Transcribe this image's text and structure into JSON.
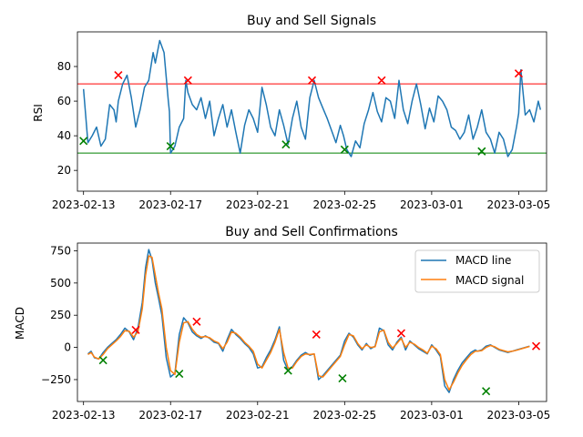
{
  "colors": {
    "rsi": "#1f77b4",
    "macd_line": "#1f77b4",
    "macd_signal": "#ff7f0e",
    "overbought": "#ff0000",
    "oversold": "#008000",
    "sell_marker": "#ff0000",
    "buy_marker": "#008000"
  },
  "chart_data": [
    {
      "type": "line",
      "title": "Buy and Sell Signals",
      "xlabel": "",
      "ylabel": "RSI",
      "x_range": [
        -0.28,
        21.28
      ],
      "ylim": [
        8,
        100
      ],
      "x_ticks": [
        {
          "day": 0,
          "label": "2023-02-13"
        },
        {
          "day": 4,
          "label": "2023-02-17"
        },
        {
          "day": 8,
          "label": "2023-02-21"
        },
        {
          "day": 12,
          "label": "2023-02-25"
        },
        {
          "day": 16,
          "label": "2023-03-01"
        },
        {
          "day": 20,
          "label": "2023-03-05"
        }
      ],
      "y_ticks": [
        20,
        40,
        60,
        80
      ],
      "thresholds": [
        {
          "name": "overbought",
          "value": 70
        },
        {
          "name": "oversold",
          "value": 30
        }
      ],
      "series": [
        {
          "name": "RSI",
          "x": [
            0,
            0.2,
            0.4,
            0.6,
            0.8,
            1,
            1.2,
            1.4,
            1.5,
            1.6,
            1.8,
            2,
            2.2,
            2.4,
            2.6,
            2.8,
            3,
            3.2,
            3.3,
            3.5,
            3.7,
            3.9,
            3.95,
            4,
            4.2,
            4.4,
            4.6,
            4.7,
            4.8,
            5,
            5.2,
            5.4,
            5.6,
            5.8,
            6,
            6.2,
            6.4,
            6.6,
            6.8,
            7,
            7.2,
            7.4,
            7.6,
            7.8,
            8,
            8.2,
            8.4,
            8.6,
            8.8,
            9,
            9.2,
            9.4,
            9.6,
            9.8,
            10,
            10.2,
            10.4,
            10.6,
            10.8,
            11,
            11.2,
            11.4,
            11.6,
            11.8,
            11.95,
            12.1,
            12.3,
            12.5,
            12.7,
            12.9,
            13.1,
            13.3,
            13.5,
            13.7,
            13.9,
            14.1,
            14.3,
            14.5,
            14.7,
            14.9,
            15.1,
            15.3,
            15.5,
            15.7,
            15.9,
            16.1,
            16.3,
            16.5,
            16.7,
            16.9,
            17.1,
            17.3,
            17.5,
            17.7,
            17.9,
            18.1,
            18.3,
            18.5,
            18.7,
            18.9,
            19.1,
            19.3,
            19.5,
            19.7,
            19.9,
            20,
            20.1,
            20.3,
            20.5,
            20.7,
            20.9,
            21
          ],
          "y": [
            67,
            36,
            40,
            45,
            34,
            38,
            58,
            55,
            48,
            60,
            70,
            75,
            62,
            45,
            55,
            68,
            72,
            88,
            82,
            95,
            88,
            60,
            54,
            30,
            34,
            45,
            50,
            72,
            65,
            58,
            55,
            62,
            50,
            60,
            40,
            50,
            58,
            45,
            55,
            42,
            30,
            46,
            55,
            50,
            42,
            68,
            58,
            45,
            40,
            55,
            46,
            35,
            50,
            60,
            45,
            38,
            62,
            72,
            62,
            56,
            50,
            43,
            36,
            46,
            40,
            32,
            28,
            37,
            33,
            47,
            55,
            65,
            54,
            48,
            62,
            60,
            50,
            72,
            55,
            47,
            60,
            70,
            58,
            44,
            56,
            48,
            63,
            60,
            55,
            45,
            43,
            38,
            42,
            52,
            38,
            45,
            55,
            42,
            38,
            30,
            42,
            38,
            28,
            32,
            45,
            53,
            78,
            52,
            55,
            48,
            60,
            55
          ]
        }
      ],
      "markers": [
        {
          "signal": "buy",
          "x": 0,
          "y": 37
        },
        {
          "signal": "sell",
          "x": 1.6,
          "y": 75
        },
        {
          "signal": "buy",
          "x": 4.0,
          "y": 34
        },
        {
          "signal": "sell",
          "x": 4.8,
          "y": 72
        },
        {
          "signal": "buy",
          "x": 9.3,
          "y": 35
        },
        {
          "signal": "sell",
          "x": 10.5,
          "y": 72
        },
        {
          "signal": "buy",
          "x": 12.0,
          "y": 32
        },
        {
          "signal": "sell",
          "x": 13.7,
          "y": 72
        },
        {
          "signal": "buy",
          "x": 18.3,
          "y": 31
        },
        {
          "signal": "sell",
          "x": 20.0,
          "y": 76
        }
      ]
    },
    {
      "type": "line",
      "title": "Buy and Sell Confirmations",
      "xlabel": "",
      "ylabel": "MACD",
      "x_range": [
        -0.28,
        21.28
      ],
      "ylim": [
        -420,
        810
      ],
      "x_ticks": [
        {
          "day": 0,
          "label": "2023-02-13"
        },
        {
          "day": 4,
          "label": "2023-02-17"
        },
        {
          "day": 8,
          "label": "2023-02-21"
        },
        {
          "day": 12,
          "label": "2023-02-25"
        },
        {
          "day": 16,
          "label": "2023-03-01"
        },
        {
          "day": 20,
          "label": "2023-03-05"
        }
      ],
      "y_ticks": [
        -250,
        0,
        250,
        500,
        750
      ],
      "legend": {
        "position": "upper right",
        "entries": [
          "MACD line",
          "MACD signal"
        ]
      },
      "series": [
        {
          "name": "MACD line",
          "x": [
            0.2,
            0.35,
            0.5,
            0.7,
            0.9,
            1.1,
            1.3,
            1.5,
            1.7,
            1.9,
            2.1,
            2.3,
            2.5,
            2.7,
            2.85,
            3.0,
            3.15,
            3.3,
            3.45,
            3.6,
            3.8,
            4.0,
            4.2,
            4.4,
            4.6,
            4.8,
            5.0,
            5.2,
            5.4,
            5.6,
            5.8,
            6.0,
            6.2,
            6.4,
            6.6,
            6.8,
            7.0,
            7.2,
            7.4,
            7.6,
            7.8,
            8.0,
            8.2,
            8.4,
            8.6,
            8.8,
            9.0,
            9.2,
            9.4,
            9.6,
            9.8,
            10.0,
            10.2,
            10.4,
            10.6,
            10.8,
            11.0,
            11.2,
            11.4,
            11.6,
            11.8,
            12.0,
            12.2,
            12.4,
            12.6,
            12.8,
            13.0,
            13.2,
            13.4,
            13.6,
            13.8,
            14.0,
            14.2,
            14.4,
            14.6,
            14.8,
            15.0,
            15.2,
            15.4,
            15.6,
            15.8,
            16.0,
            16.2,
            16.4,
            16.6,
            16.8,
            17.0,
            17.2,
            17.4,
            17.6,
            17.8,
            18.0,
            18.1,
            18.3,
            18.5,
            18.7,
            18.9,
            19.1,
            19.3,
            19.5,
            19.7,
            19.9,
            20.1,
            20.3,
            20.5
          ],
          "y": [
            -50,
            -30,
            -80,
            -90,
            -40,
            0,
            30,
            60,
            100,
            150,
            120,
            60,
            150,
            350,
            620,
            760,
            680,
            500,
            380,
            250,
            -80,
            -230,
            -200,
            100,
            230,
            190,
            120,
            90,
            70,
            90,
            70,
            40,
            30,
            -30,
            60,
            140,
            100,
            70,
            30,
            0,
            -50,
            -160,
            -150,
            -80,
            -20,
            60,
            160,
            -100,
            -180,
            -150,
            -100,
            -60,
            -40,
            -60,
            -50,
            -250,
            -220,
            -180,
            -140,
            -100,
            -60,
            50,
            110,
            80,
            20,
            -20,
            30,
            -10,
            10,
            150,
            130,
            20,
            -20,
            40,
            80,
            -20,
            50,
            20,
            -10,
            -30,
            -50,
            20,
            -20,
            -70,
            -300,
            -350,
            -250,
            -180,
            -120,
            -80,
            -40,
            -20,
            -30,
            -20,
            10,
            20,
            0,
            -20,
            -30,
            -40,
            -30,
            -20,
            -10,
            0,
            10
          ]
        },
        {
          "name": "MACD signal",
          "x": [
            0.2,
            0.35,
            0.5,
            0.7,
            0.9,
            1.1,
            1.3,
            1.5,
            1.7,
            1.9,
            2.1,
            2.3,
            2.5,
            2.7,
            2.85,
            3.0,
            3.15,
            3.3,
            3.45,
            3.6,
            3.8,
            4.0,
            4.2,
            4.4,
            4.6,
            4.8,
            5.0,
            5.2,
            5.4,
            5.6,
            5.8,
            6.0,
            6.2,
            6.4,
            6.6,
            6.8,
            7.0,
            7.2,
            7.4,
            7.6,
            7.8,
            8.0,
            8.2,
            8.4,
            8.6,
            8.8,
            9.0,
            9.2,
            9.4,
            9.6,
            9.8,
            10.0,
            10.2,
            10.4,
            10.6,
            10.8,
            11.0,
            11.2,
            11.4,
            11.6,
            11.8,
            12.0,
            12.2,
            12.4,
            12.6,
            12.8,
            13.0,
            13.2,
            13.4,
            13.6,
            13.8,
            14.0,
            14.2,
            14.4,
            14.6,
            14.8,
            15.0,
            15.2,
            15.4,
            15.6,
            15.8,
            16.0,
            16.2,
            16.4,
            16.6,
            16.8,
            17.0,
            17.2,
            17.4,
            17.6,
            17.8,
            18.0,
            18.1,
            18.3,
            18.5,
            18.7,
            18.9,
            19.1,
            19.3,
            19.5,
            19.7,
            19.9,
            20.1,
            20.3,
            20.5
          ],
          "y": [
            -55,
            -40,
            -75,
            -90,
            -55,
            -10,
            20,
            50,
            85,
            130,
            125,
            80,
            120,
            300,
            560,
            710,
            700,
            560,
            420,
            300,
            0,
            -180,
            -210,
            40,
            190,
            200,
            140,
            100,
            80,
            85,
            75,
            50,
            35,
            -10,
            40,
            120,
            110,
            80,
            40,
            10,
            -30,
            -130,
            -160,
            -100,
            -40,
            40,
            140,
            -40,
            -160,
            -160,
            -110,
            -70,
            -50,
            -55,
            -50,
            -220,
            -230,
            -190,
            -150,
            -110,
            -70,
            20,
            100,
            90,
            30,
            -10,
            20,
            0,
            5,
            120,
            135,
            40,
            -5,
            30,
            70,
            0,
            40,
            25,
            0,
            -20,
            -45,
            10,
            -10,
            -55,
            -250,
            -330,
            -270,
            -200,
            -140,
            -95,
            -55,
            -30,
            -30,
            -25,
            0,
            15,
            5,
            -15,
            -25,
            -35,
            -30,
            -22,
            -12,
            -2,
            8
          ]
        }
      ],
      "markers": [
        {
          "signal": "buy",
          "x": 0.9,
          "y": -100
        },
        {
          "signal": "sell",
          "x": 2.4,
          "y": 135
        },
        {
          "signal": "buy",
          "x": 4.4,
          "y": -205
        },
        {
          "signal": "sell",
          "x": 5.2,
          "y": 200
        },
        {
          "signal": "buy",
          "x": 9.4,
          "y": -180
        },
        {
          "signal": "sell",
          "x": 10.7,
          "y": 100
        },
        {
          "signal": "buy",
          "x": 11.9,
          "y": -240
        },
        {
          "signal": "sell",
          "x": 14.6,
          "y": 110
        },
        {
          "signal": "buy",
          "x": 18.5,
          "y": -340
        },
        {
          "signal": "sell",
          "x": 20.8,
          "y": 10
        }
      ]
    }
  ]
}
